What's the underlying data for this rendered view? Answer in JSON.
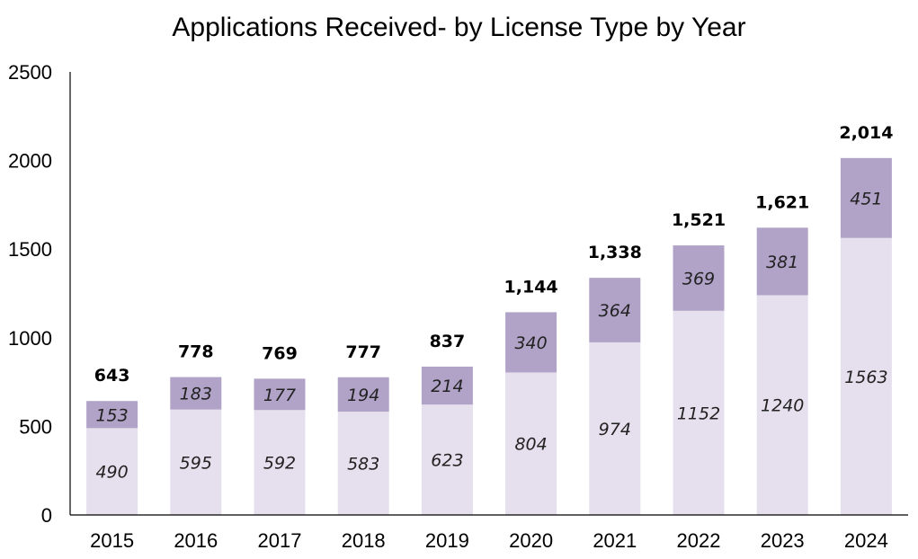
{
  "chart_data": {
    "type": "bar",
    "stacked": true,
    "title": "Applications Received- by License Type by Year",
    "xlabel": "",
    "ylabel": "",
    "ylim": [
      0,
      2500
    ],
    "yticks": [
      0,
      500,
      1000,
      1500,
      2000,
      2500
    ],
    "grid": false,
    "legend": "none",
    "categories": [
      "2015",
      "2016",
      "2017",
      "2018",
      "2019",
      "2020",
      "2021",
      "2022",
      "2023",
      "2024"
    ],
    "series": [
      {
        "values": [
          490,
          595,
          592,
          583,
          623,
          804,
          974,
          1152,
          1240,
          1563
        ],
        "color": "#e6dfed"
      },
      {
        "values": [
          153,
          183,
          177,
          194,
          214,
          340,
          364,
          369,
          381,
          451
        ],
        "color": "#b1a3c8"
      }
    ],
    "totals": [
      "643",
      "778",
      "769",
      "777",
      "837",
      "1,144",
      "1,338",
      "1,521",
      "1,621",
      "2,014"
    ]
  }
}
